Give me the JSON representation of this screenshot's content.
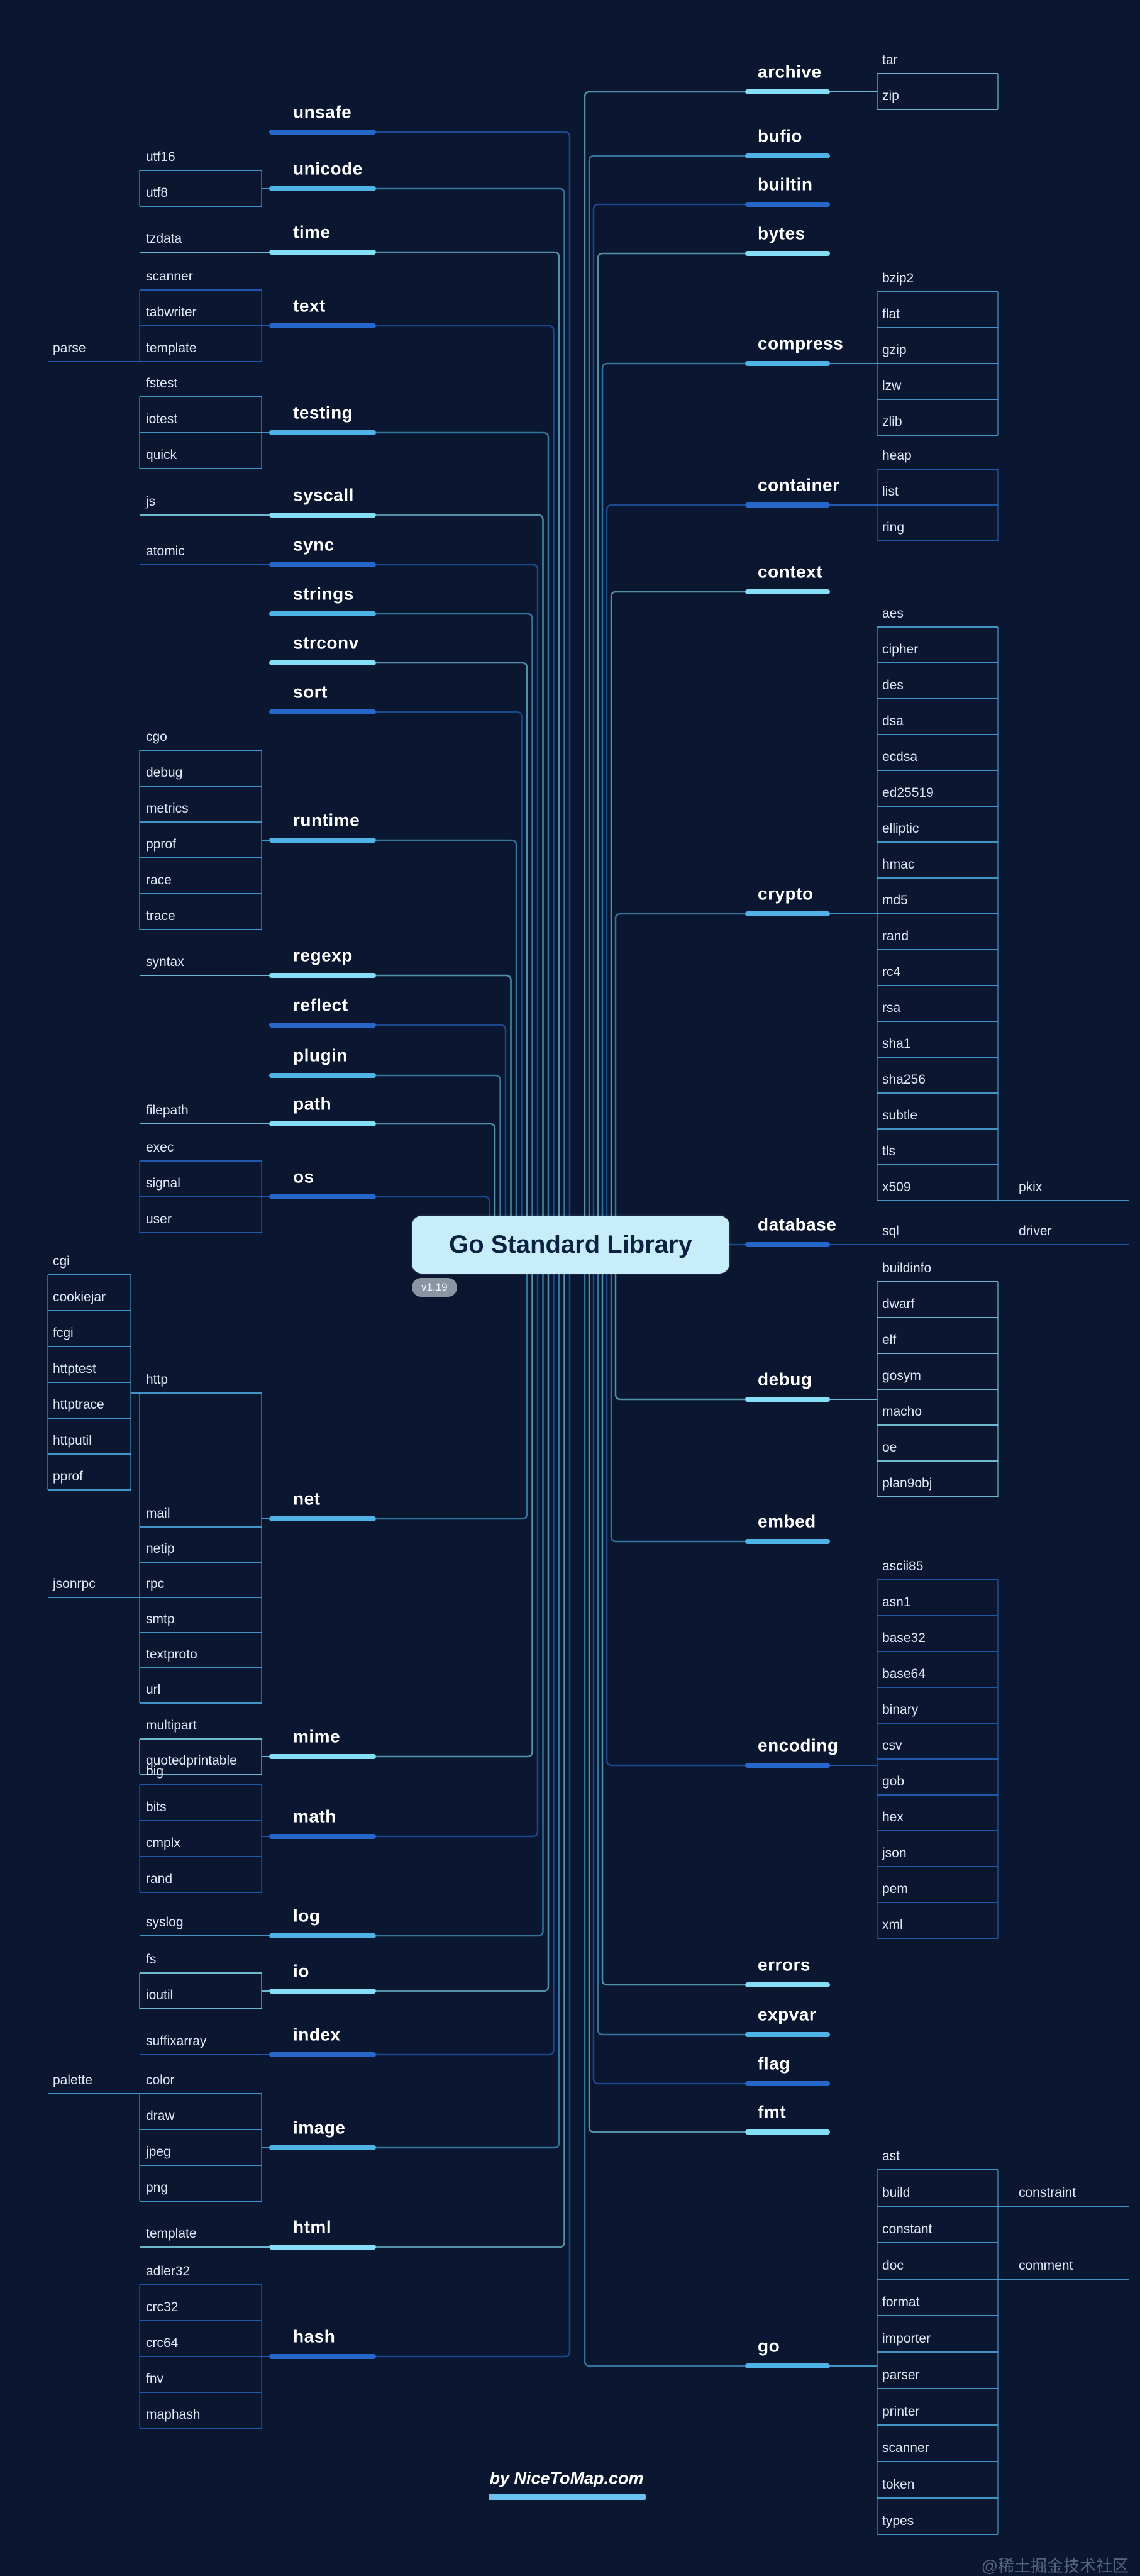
{
  "center": {
    "title": "Go Standard Library",
    "version": "v1.19"
  },
  "footer": {
    "credit": "by NiceToMap.com"
  },
  "watermark": {
    "text": "@稀土掘金技术社区"
  },
  "palette": {
    "royal": "#2667cc",
    "sky": "#4fb3e8",
    "cyan": "#84dff6",
    "background": "#0b1731",
    "node_bg": "#c7edfb",
    "node_text": "#0d2140",
    "badge_bg": "#96a0ac",
    "credit_bar": "#69c3ef"
  },
  "left": [
    {
      "label": "unsafe"
    },
    {
      "label": "unicode",
      "children": [
        {
          "label": "utf16"
        },
        {
          "label": "utf8"
        }
      ]
    },
    {
      "label": "time",
      "children": [
        {
          "label": "tzdata"
        }
      ]
    },
    {
      "label": "text",
      "children": [
        {
          "label": "scanner"
        },
        {
          "label": "tabwriter"
        },
        {
          "label": "template",
          "children": [
            {
              "label": "parse"
            }
          ]
        }
      ]
    },
    {
      "label": "testing",
      "children": [
        {
          "label": "fstest"
        },
        {
          "label": "iotest"
        },
        {
          "label": "quick"
        }
      ]
    },
    {
      "label": "syscall",
      "children": [
        {
          "label": "js"
        }
      ]
    },
    {
      "label": "sync",
      "children": [
        {
          "label": "atomic"
        }
      ]
    },
    {
      "label": "strings"
    },
    {
      "label": "strconv"
    },
    {
      "label": "sort"
    },
    {
      "label": "runtime",
      "children": [
        {
          "label": "cgo"
        },
        {
          "label": "debug"
        },
        {
          "label": "metrics"
        },
        {
          "label": "pprof"
        },
        {
          "label": "race"
        },
        {
          "label": "trace"
        }
      ]
    },
    {
      "label": "regexp",
      "children": [
        {
          "label": "syntax"
        }
      ]
    },
    {
      "label": "reflect"
    },
    {
      "label": "plugin"
    },
    {
      "label": "path",
      "children": [
        {
          "label": "filepath"
        }
      ]
    },
    {
      "label": "os",
      "children": [
        {
          "label": "exec"
        },
        {
          "label": "signal"
        },
        {
          "label": "user"
        }
      ]
    },
    {
      "label": "net",
      "children": [
        {
          "label": "http",
          "children": [
            {
              "label": "cgi"
            },
            {
              "label": "cookiejar"
            },
            {
              "label": "fcgi"
            },
            {
              "label": "httptest"
            },
            {
              "label": "httptrace"
            },
            {
              "label": "httputil"
            },
            {
              "label": "pprof"
            }
          ]
        },
        {
          "label": "mail"
        },
        {
          "label": "netip"
        },
        {
          "label": "rpc",
          "children": [
            {
              "label": "jsonrpc"
            }
          ]
        },
        {
          "label": "smtp"
        },
        {
          "label": "textproto"
        },
        {
          "label": "url"
        }
      ]
    },
    {
      "label": "mime",
      "children": [
        {
          "label": "multipart"
        },
        {
          "label": "quotedprintable"
        }
      ]
    },
    {
      "label": "math",
      "children": [
        {
          "label": "big"
        },
        {
          "label": "bits"
        },
        {
          "label": "cmplx"
        },
        {
          "label": "rand"
        }
      ]
    },
    {
      "label": "log",
      "children": [
        {
          "label": "syslog"
        }
      ]
    },
    {
      "label": "io",
      "children": [
        {
          "label": "fs"
        },
        {
          "label": "ioutil"
        }
      ]
    },
    {
      "label": "index",
      "children": [
        {
          "label": "suffixarray"
        }
      ]
    },
    {
      "label": "image",
      "children": [
        {
          "label": "color",
          "children": [
            {
              "label": "palette"
            }
          ]
        },
        {
          "label": "draw"
        },
        {
          "label": "jpeg"
        },
        {
          "label": "png"
        }
      ]
    },
    {
      "label": "html",
      "children": [
        {
          "label": "template"
        }
      ]
    },
    {
      "label": "hash",
      "children": [
        {
          "label": "adler32"
        },
        {
          "label": "crc32"
        },
        {
          "label": "crc64"
        },
        {
          "label": "fnv"
        },
        {
          "label": "maphash"
        }
      ]
    }
  ],
  "right": [
    {
      "label": "archive",
      "children": [
        {
          "label": "tar"
        },
        {
          "label": "zip"
        }
      ]
    },
    {
      "label": "bufio"
    },
    {
      "label": "builtin"
    },
    {
      "label": "bytes"
    },
    {
      "label": "compress",
      "children": [
        {
          "label": "bzip2"
        },
        {
          "label": "flat"
        },
        {
          "label": "gzip"
        },
        {
          "label": "lzw"
        },
        {
          "label": "zlib"
        }
      ]
    },
    {
      "label": "container",
      "children": [
        {
          "label": "heap"
        },
        {
          "label": "list"
        },
        {
          "label": "ring"
        }
      ]
    },
    {
      "label": "context"
    },
    {
      "label": "crypto",
      "children": [
        {
          "label": "aes"
        },
        {
          "label": "cipher"
        },
        {
          "label": "des"
        },
        {
          "label": "dsa"
        },
        {
          "label": "ecdsa"
        },
        {
          "label": "ed25519"
        },
        {
          "label": "elliptic"
        },
        {
          "label": "hmac"
        },
        {
          "label": "md5"
        },
        {
          "label": "rand"
        },
        {
          "label": "rc4"
        },
        {
          "label": "rsa"
        },
        {
          "label": "sha1"
        },
        {
          "label": "sha256"
        },
        {
          "label": "subtle"
        },
        {
          "label": "tls"
        },
        {
          "label": "x509",
          "children": [
            {
              "label": "pkix"
            }
          ]
        }
      ]
    },
    {
      "label": "database",
      "children": [
        {
          "label": "sql",
          "children": [
            {
              "label": "driver"
            }
          ]
        }
      ]
    },
    {
      "label": "debug",
      "children": [
        {
          "label": "buildinfo"
        },
        {
          "label": "dwarf"
        },
        {
          "label": "elf"
        },
        {
          "label": "gosym"
        },
        {
          "label": "macho"
        },
        {
          "label": "oe"
        },
        {
          "label": "plan9obj"
        }
      ]
    },
    {
      "label": "embed"
    },
    {
      "label": "encoding",
      "children": [
        {
          "label": "ascii85"
        },
        {
          "label": "asn1"
        },
        {
          "label": "base32"
        },
        {
          "label": "base64"
        },
        {
          "label": "binary"
        },
        {
          "label": "csv"
        },
        {
          "label": "gob"
        },
        {
          "label": "hex"
        },
        {
          "label": "json"
        },
        {
          "label": "pem"
        },
        {
          "label": "xml"
        }
      ]
    },
    {
      "label": "errors"
    },
    {
      "label": "expvar"
    },
    {
      "label": "flag"
    },
    {
      "label": "fmt"
    },
    {
      "label": "go",
      "children": [
        {
          "label": "ast"
        },
        {
          "label": "build",
          "children": [
            {
              "label": "constraint"
            }
          ]
        },
        {
          "label": "constant"
        },
        {
          "label": "doc",
          "children": [
            {
              "label": "comment"
            }
          ]
        },
        {
          "label": "format"
        },
        {
          "label": "importer"
        },
        {
          "label": "parser"
        },
        {
          "label": "printer"
        },
        {
          "label": "scanner"
        },
        {
          "label": "token"
        },
        {
          "label": "types"
        }
      ]
    }
  ]
}
